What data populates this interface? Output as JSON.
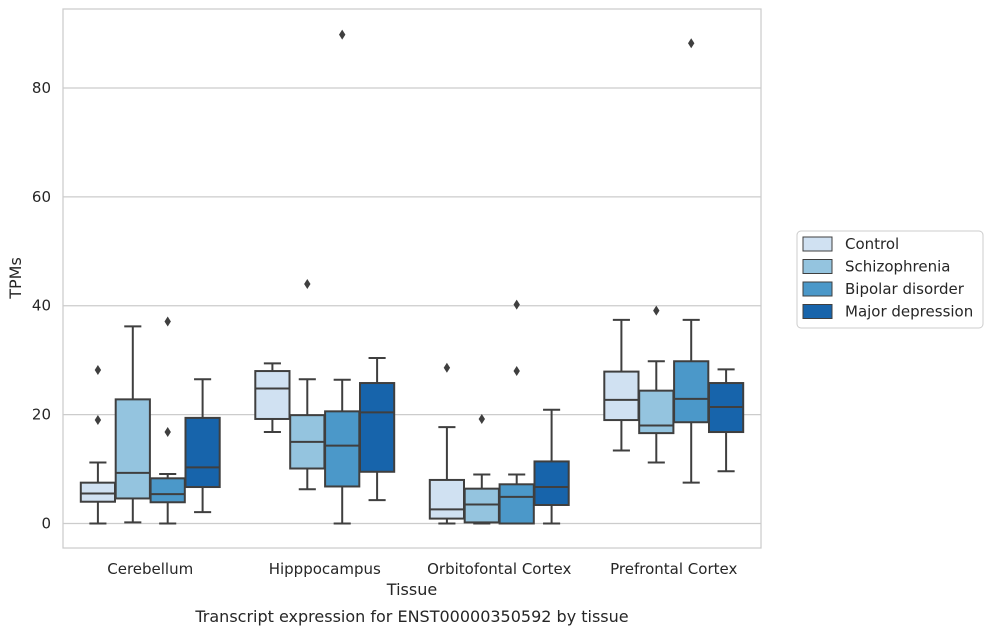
{
  "chart_data": {
    "type": "boxplot",
    "title": "",
    "caption": "Transcript expression for ENST00000350592 by tissue",
    "xlabel": "Tissue",
    "ylabel": "TPMs",
    "ylim": [
      -4.5,
      94.5
    ],
    "yticks": [
      0,
      20,
      40,
      60,
      80
    ],
    "ytick_labels": [
      "0",
      "20",
      "40",
      "60",
      "80"
    ],
    "grid": "horizontal",
    "legend_position": "right",
    "categories": [
      "Cerebellum",
      "Hipppocampus",
      "Orbitofontal Cortex",
      "Prefrontal Cortex"
    ],
    "series": [
      {
        "name": "Control",
        "color": "#d0e1f2",
        "boxes": [
          {
            "whislo": 0,
            "q1": 4.0,
            "med": 5.5,
            "q3": 7.5,
            "whishi": 11.2,
            "fliers": [
              19.0,
              28.2
            ]
          },
          {
            "whislo": 16.8,
            "q1": 19.2,
            "med": 24.8,
            "q3": 28.0,
            "whishi": 29.4,
            "fliers": []
          },
          {
            "whislo": 0,
            "q1": 0.9,
            "med": 2.6,
            "q3": 8.0,
            "whishi": 17.7,
            "fliers": [
              28.6
            ]
          },
          {
            "whislo": 13.4,
            "q1": 19.0,
            "med": 22.7,
            "q3": 27.9,
            "whishi": 37.4,
            "fliers": []
          }
        ]
      },
      {
        "name": "Schizophrenia",
        "color": "#94c4df",
        "boxes": [
          {
            "whislo": 0.2,
            "q1": 4.6,
            "med": 9.3,
            "q3": 22.8,
            "whishi": 36.2,
            "fliers": []
          },
          {
            "whislo": 6.3,
            "q1": 10.1,
            "med": 15.0,
            "q3": 19.9,
            "whishi": 26.5,
            "fliers": [
              44.0
            ]
          },
          {
            "whislo": 0,
            "q1": 0.2,
            "med": 3.5,
            "q3": 6.4,
            "whishi": 9.0,
            "fliers": [
              19.2
            ]
          },
          {
            "whislo": 11.2,
            "q1": 16.6,
            "med": 18.0,
            "q3": 24.4,
            "whishi": 29.8,
            "fliers": [
              39.1
            ]
          }
        ]
      },
      {
        "name": "Bipolar disorder",
        "color": "#4b98c9",
        "boxes": [
          {
            "whislo": 0,
            "q1": 3.9,
            "med": 5.4,
            "q3": 8.3,
            "whishi": 9.1,
            "fliers": [
              16.8,
              37.1
            ]
          },
          {
            "whislo": 0,
            "q1": 6.8,
            "med": 14.3,
            "q3": 20.6,
            "whishi": 26.4,
            "fliers": [
              89.8
            ]
          },
          {
            "whislo": 0,
            "q1": 0,
            "med": 4.9,
            "q3": 7.2,
            "whishi": 9.0,
            "fliers": [
              28.0,
              40.2
            ]
          },
          {
            "whislo": 7.5,
            "q1": 18.6,
            "med": 22.9,
            "q3": 29.8,
            "whishi": 37.4,
            "fliers": [
              88.2
            ]
          }
        ]
      },
      {
        "name": "Major depression",
        "color": "#1764ab",
        "boxes": [
          {
            "whislo": 2.1,
            "q1": 6.7,
            "med": 10.3,
            "q3": 19.4,
            "whishi": 26.5,
            "fliers": []
          },
          {
            "whislo": 4.3,
            "q1": 9.5,
            "med": 20.4,
            "q3": 25.8,
            "whishi": 30.4,
            "fliers": []
          },
          {
            "whislo": 0,
            "q1": 3.4,
            "med": 6.7,
            "q3": 11.4,
            "whishi": 20.9,
            "fliers": []
          },
          {
            "whislo": 9.6,
            "q1": 16.8,
            "med": 21.4,
            "q3": 25.8,
            "whishi": 28.3,
            "fliers": []
          }
        ]
      }
    ]
  },
  "style": {
    "box_edge_color": "#3f3f3f",
    "grid_color": "#cccccc",
    "frame_color": "#cccccc",
    "text_color": "#262626"
  }
}
